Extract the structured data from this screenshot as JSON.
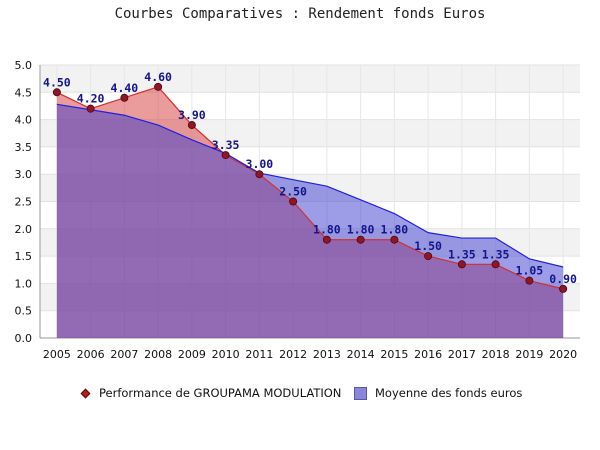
{
  "title": "Courbes Comparatives : Rendement fonds Euros",
  "chart_data": {
    "type": "area",
    "title": "Courbes Comparatives : Rendement fonds Euros",
    "xlabel": "",
    "ylabel": "",
    "ylim": [
      0,
      5
    ],
    "x": [
      "2005",
      "2006",
      "2007",
      "2008",
      "2009",
      "2010",
      "2011",
      "2012",
      "2013",
      "2014",
      "2015",
      "2016",
      "2017",
      "2018",
      "2019",
      "2020"
    ],
    "y_ticks": [
      "0.0",
      "0.5",
      "1.0",
      "1.5",
      "2.0",
      "2.5",
      "3.0",
      "3.5",
      "4.0",
      "4.5",
      "5.0"
    ],
    "grid": "horizontal bands",
    "legend_position": "bottom",
    "series": [
      {
        "name": "Performance de GROUPAMA MODULATION",
        "values": [
          4.5,
          4.2,
          4.4,
          4.6,
          3.9,
          3.35,
          3.0,
          2.5,
          1.8,
          1.8,
          1.8,
          1.5,
          1.35,
          1.35,
          1.05,
          0.9
        ],
        "labels": [
          "4.50",
          "4.20",
          "4.40",
          "4.60",
          "3.90",
          "3.35",
          "3.00",
          "2.50",
          "1.80",
          "1.80",
          "1.80",
          "1.50",
          "1.35",
          "1.35",
          "1.05",
          "0.90"
        ],
        "color": "#d04040"
      },
      {
        "name": "Moyenne des fonds euros",
        "values": [
          4.28,
          4.18,
          4.08,
          3.9,
          3.63,
          3.38,
          3.02,
          2.9,
          2.78,
          2.53,
          2.28,
          1.93,
          1.83,
          1.83,
          1.45,
          1.3
        ],
        "color": "#4040d8"
      }
    ]
  },
  "legend": {
    "item1": "Performance de GROUPAMA MODULATION",
    "item2": "Moyenne des fonds euros"
  }
}
